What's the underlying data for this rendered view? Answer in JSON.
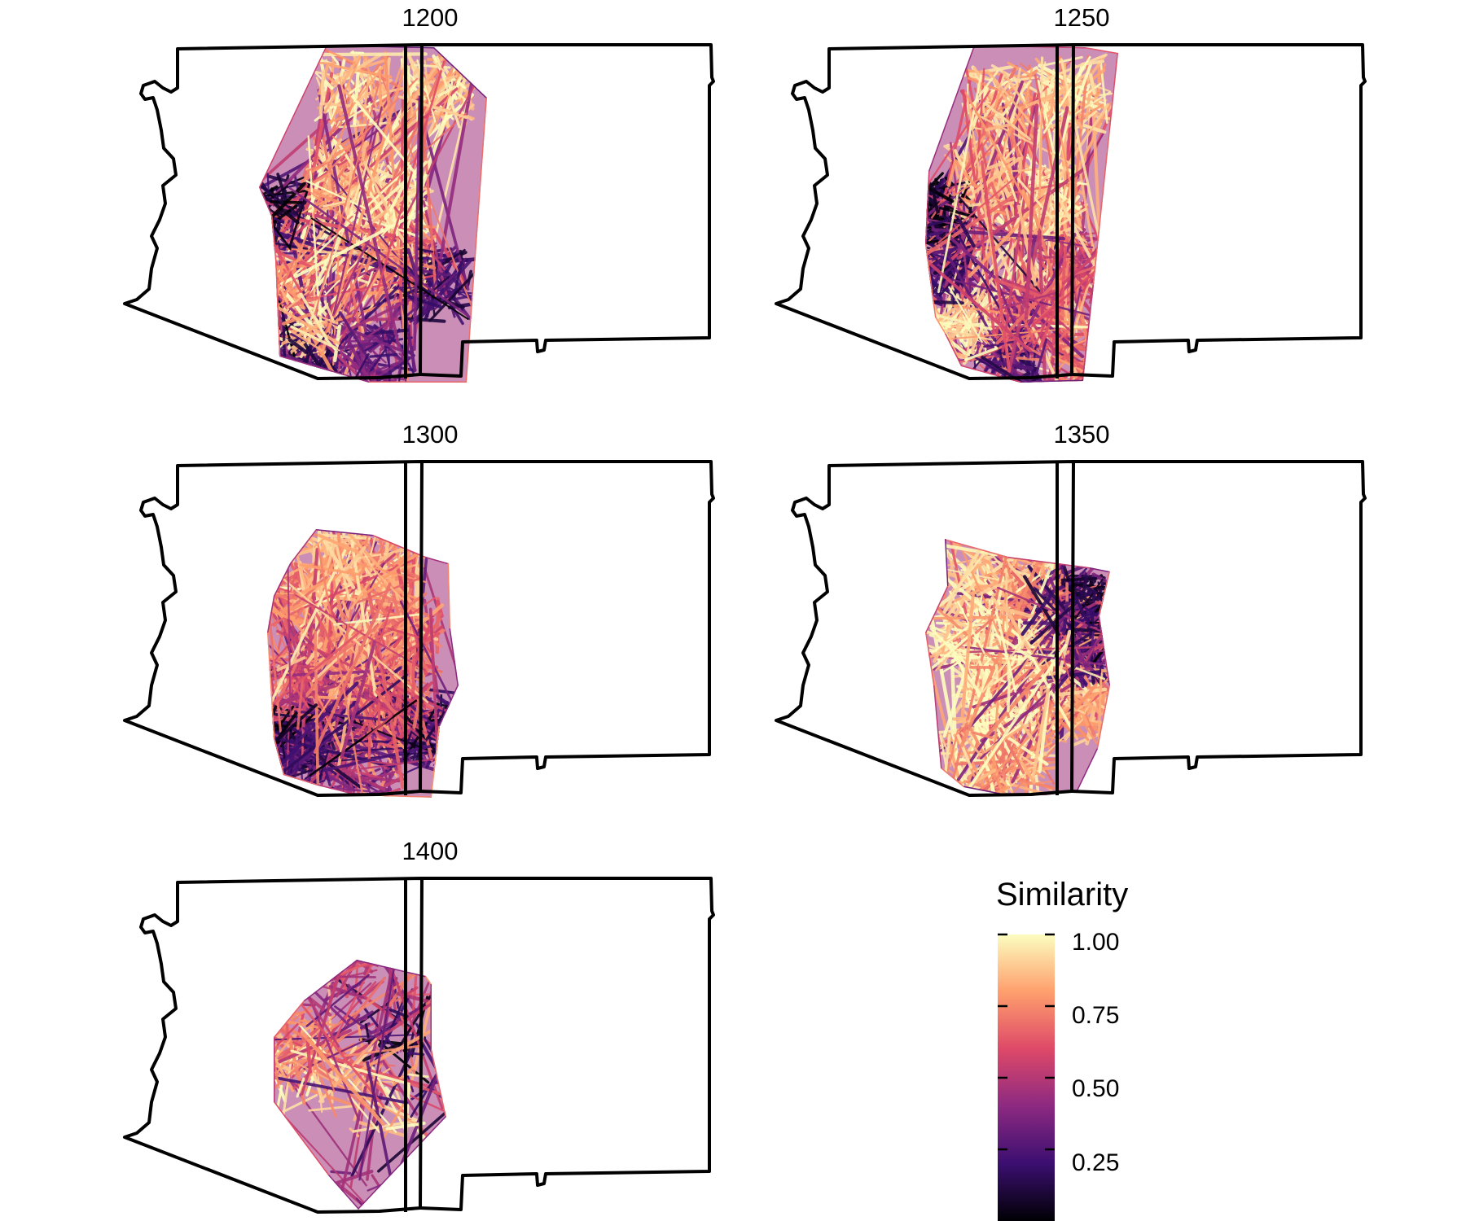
{
  "panels": [
    {
      "title": "1200"
    },
    {
      "title": "1250"
    },
    {
      "title": "1300"
    },
    {
      "title": "1350"
    },
    {
      "title": "1400"
    }
  ],
  "legend": {
    "title": "Similarity",
    "breaks": [
      {
        "value": 0.25,
        "label": "0.25"
      },
      {
        "value": 0.5,
        "label": "0.50"
      },
      {
        "value": 0.75,
        "label": "0.75"
      },
      {
        "value": 1.0,
        "label": "1.00"
      }
    ],
    "range": [
      0,
      1
    ],
    "palette": [
      "#000004",
      "#3b0f70",
      "#8c2981",
      "#de4968",
      "#fe9f6d",
      "#fcfdbf"
    ]
  },
  "colors": {
    "outline": "#000000",
    "background": "#ffffff"
  }
}
